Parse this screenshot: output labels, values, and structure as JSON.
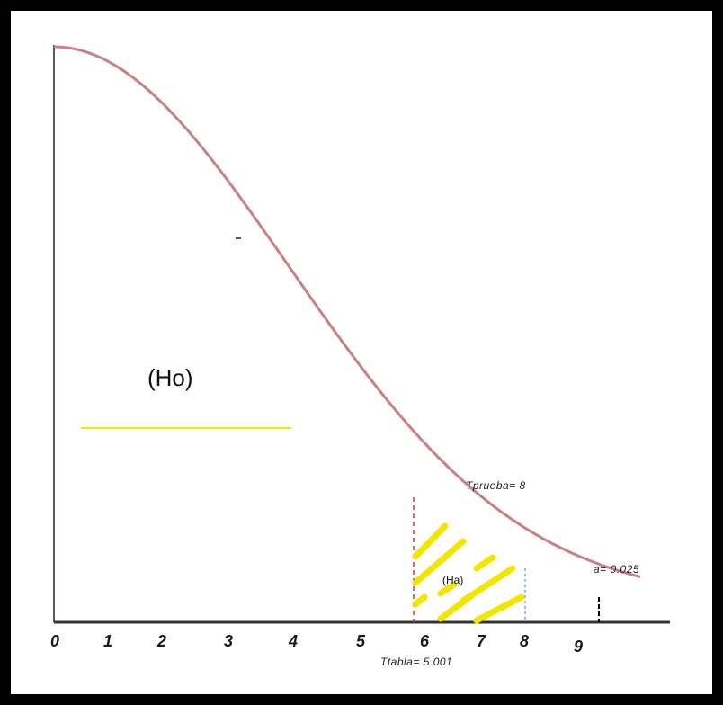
{
  "x_ticks": [
    "0",
    "1",
    "2",
    "3",
    "4",
    "5",
    "6",
    "7",
    "8",
    "9"
  ],
  "labels": {
    "null_region": "(Ho)",
    "alt_region": "(Ha)",
    "t_test": "Tprueba= 8",
    "t_table": "Ttabla= 5.001",
    "alpha": "a= 0.025"
  },
  "colors": {
    "curve": "#c98080",
    "hatch": "#f2e600",
    "yellow_line": "#f2e600",
    "t_table_marker": "#e03030",
    "t_test_marker": "#40a0d8",
    "axis": "#333333"
  }
}
